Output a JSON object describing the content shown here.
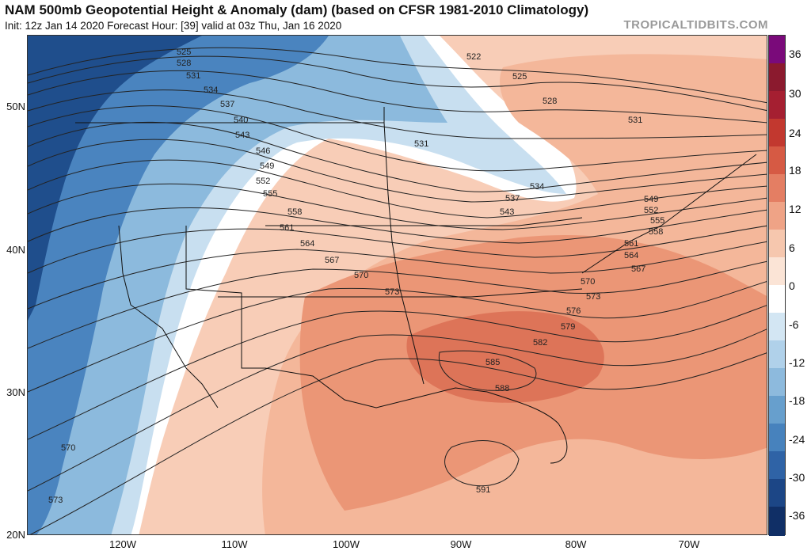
{
  "header": {
    "title": "NAM 500mb Geopotential Height & Anomaly (dam) (based on CFSR 1981-2010 Climatology)",
    "subtitle": "Init: 12z Jan 14 2020   Forecast Hour: [39]   valid at 03z Thu, Jan 16 2020",
    "brand": "TROPICALTIDBITS.COM"
  },
  "axes": {
    "latitudes": [
      "50N",
      "40N",
      "30N",
      "20N"
    ],
    "longitudes": [
      "120W",
      "110W",
      "100W",
      "90W",
      "80W",
      "70W"
    ]
  },
  "colorbar": {
    "ticks": [
      "36",
      "30",
      "24",
      "18",
      "12",
      "6",
      "0",
      "-6",
      "-12",
      "-18",
      "-24",
      "-30",
      "-36"
    ],
    "colors": [
      "#7a0a7a",
      "#8b1a2e",
      "#a51f31",
      "#c2382f",
      "#d65a44",
      "#e47e63",
      "#efa386",
      "#f6c7ae",
      "#fbe4d6",
      "#ffffff",
      "#d3e6f3",
      "#b0d1ea",
      "#8dbadd",
      "#679fcd",
      "#4782bd",
      "#2f63a6",
      "#1c4686",
      "#102f66"
    ]
  },
  "contours": {
    "labels": [
      "525",
      "528",
      "531",
      "534",
      "537",
      "540",
      "543",
      "546",
      "549",
      "552",
      "555",
      "558",
      "561",
      "564",
      "567",
      "570",
      "573",
      "522",
      "525",
      "528",
      "531",
      "534",
      "537",
      "543",
      "531",
      "549",
      "552",
      "555",
      "558",
      "561",
      "564",
      "567",
      "570",
      "573",
      "576",
      "579",
      "582",
      "585",
      "588",
      "591",
      "570",
      "573"
    ]
  },
  "map": {
    "anomaly_colors": {
      "strong_neg": "#1f4e8c",
      "neg": "#4a84bf",
      "weak_neg": "#8cbadd",
      "light_neg": "#c8dff0",
      "neutral": "#ffffff",
      "light_pos": "#fbe0d0",
      "pos": "#f4b79a",
      "mid_pos": "#eb9676",
      "strong_pos": "#dd7458"
    }
  }
}
